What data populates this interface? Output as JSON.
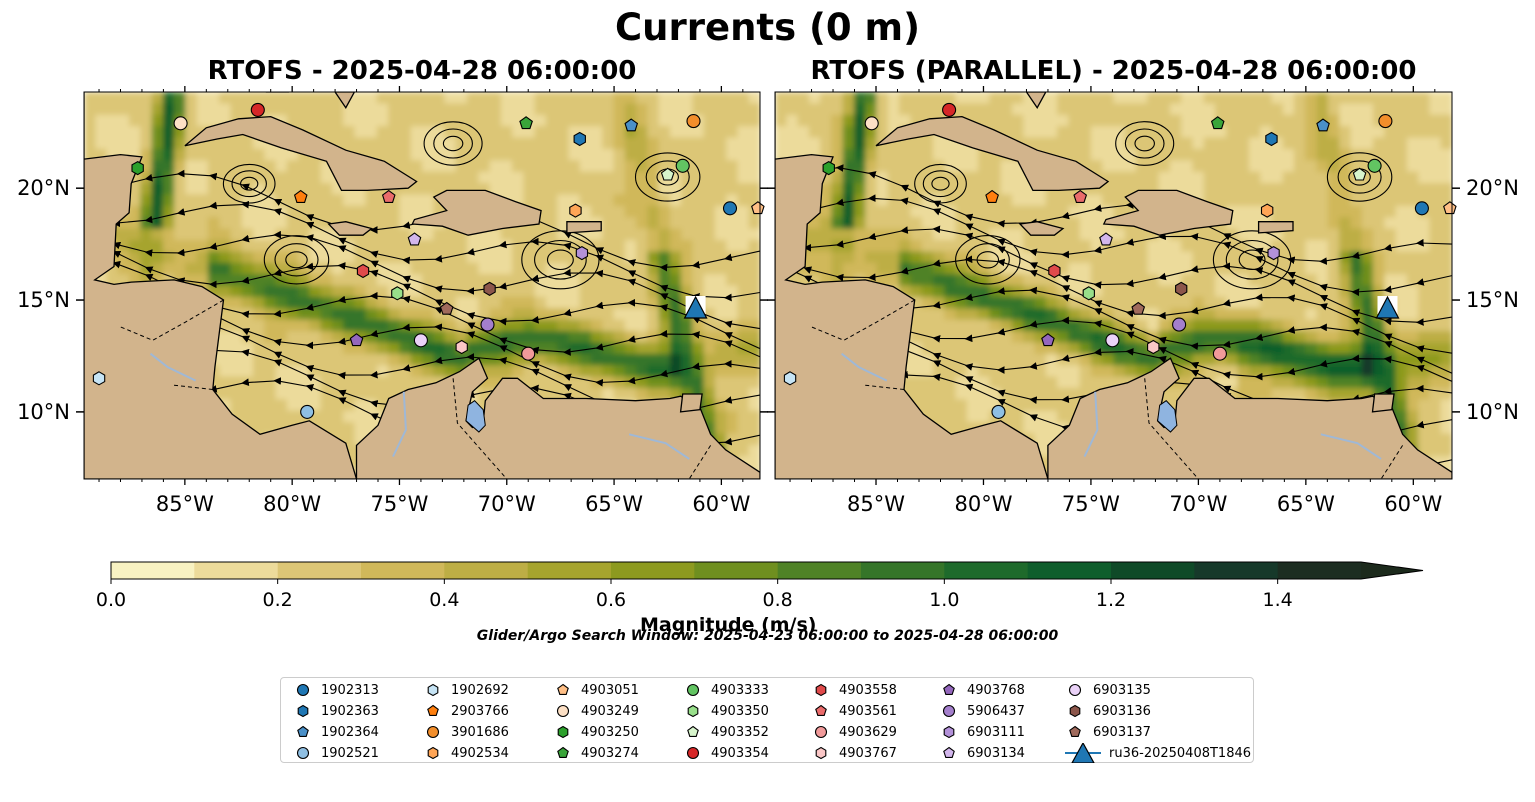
{
  "figure": {
    "suptitle": "Currents (0 m)",
    "panel_titles": [
      "RTOFS - 2025-04-28 06:00:00",
      "RTOFS (PARALLEL) - 2025-04-28 06:00:00"
    ],
    "colorbar_label": "Magnitude (m/s)",
    "search_window": "Glider/Argo Search Window: 2025-04-23 06:00:00 to 2025-04-28 06:00:00",
    "lon_ticks": [
      "85°W",
      "80°W",
      "75°W",
      "70°W",
      "65°W",
      "60°W"
    ],
    "lat_ticks": [
      "20°N",
      "15°N",
      "10°N"
    ],
    "colorbar_ticks": [
      "0.0",
      "0.2",
      "0.4",
      "0.6",
      "0.8",
      "1.0",
      "1.2",
      "1.4"
    ],
    "colors": {
      "land": "#d2b48c",
      "lake": "#8fb4e0",
      "river": "#9fb8d6"
    }
  },
  "chart_data": {
    "type": "heatmap",
    "variable": "surface current magnitude",
    "units": "m/s",
    "extent": {
      "lon": [
        -89.7,
        -58.2
      ],
      "lat": [
        7.0,
        24.3
      ]
    },
    "colorbar": {
      "min": 0.0,
      "max": 1.5,
      "step": 0.1,
      "extend": "max",
      "colors": [
        "#f8f2c2",
        "#ecdb9b",
        "#dcc676",
        "#d0b85a",
        "#bdae45",
        "#a6a42e",
        "#8d9a1f",
        "#6f8f1f",
        "#4f8226",
        "#357529",
        "#1e6a2b",
        "#0f5e2c",
        "#0f4a28",
        "#16392a",
        "#1c2d21",
        "#1c2a1c"
      ]
    },
    "floats": [
      {
        "id": "1902313",
        "marker": "circle",
        "color": "#1f77b4",
        "lon": -59.6,
        "lat": 19.1
      },
      {
        "id": "1902363",
        "marker": "hexagon",
        "color": "#1f77b4",
        "lon": -66.6,
        "lat": 22.2
      },
      {
        "id": "1902364",
        "marker": "pentagon",
        "color": "#4a90c8",
        "lon": -64.2,
        "lat": 22.8
      },
      {
        "id": "1902521",
        "marker": "circle",
        "color": "#8fbfe3",
        "lon": -79.3,
        "lat": 10.0
      },
      {
        "id": "1902692",
        "marker": "hexagon",
        "color": "#c6e4f5",
        "lon": -89.0,
        "lat": 11.5
      },
      {
        "id": "2903766",
        "marker": "pentagon",
        "color": "#ff7f0e",
        "lon": -79.6,
        "lat": 19.6
      },
      {
        "id": "3901686",
        "marker": "circle",
        "color": "#f28e2b",
        "lon": -61.3,
        "lat": 23.0
      },
      {
        "id": "4902534",
        "marker": "hexagon",
        "color": "#ffa556",
        "lon": -66.8,
        "lat": 19.0
      },
      {
        "id": "4903051",
        "marker": "pentagon",
        "color": "#ffbf86",
        "lon": -58.3,
        "lat": 19.1
      },
      {
        "id": "4903249",
        "marker": "circle",
        "color": "#fde0c5",
        "lon": -85.2,
        "lat": 22.9
      },
      {
        "id": "4903250",
        "marker": "hexagon",
        "color": "#2ca02c",
        "lon": -87.2,
        "lat": 20.9
      },
      {
        "id": "4903274",
        "marker": "pentagon",
        "color": "#3aa53a",
        "lon": -69.1,
        "lat": 22.9
      },
      {
        "id": "4903333",
        "marker": "circle",
        "color": "#62c462",
        "lon": -61.8,
        "lat": 21.0
      },
      {
        "id": "4903350",
        "marker": "hexagon",
        "color": "#98df8a",
        "lon": -75.1,
        "lat": 15.3
      },
      {
        "id": "4903352",
        "marker": "pentagon",
        "color": "#d7f5cc",
        "lon": -62.5,
        "lat": 20.6
      },
      {
        "id": "4903354",
        "marker": "circle",
        "color": "#d62728",
        "lon": -81.6,
        "lat": 23.5
      },
      {
        "id": "4903558",
        "marker": "hexagon",
        "color": "#e04a4b",
        "lon": -76.7,
        "lat": 16.3
      },
      {
        "id": "4903561",
        "marker": "pentagon",
        "color": "#ea6b6b",
        "lon": -75.5,
        "lat": 19.6
      },
      {
        "id": "4903629",
        "marker": "circle",
        "color": "#f19a9a",
        "lon": -69.0,
        "lat": 12.6
      },
      {
        "id": "4903767",
        "marker": "hexagon",
        "color": "#fbc7c7",
        "lon": -72.1,
        "lat": 12.9
      },
      {
        "id": "4903768",
        "marker": "pentagon",
        "color": "#9467bd",
        "lon": -77.0,
        "lat": 13.2
      },
      {
        "id": "5906437",
        "marker": "circle",
        "color": "#a47fcc",
        "lon": -70.9,
        "lat": 13.9
      },
      {
        "id": "6903111",
        "marker": "hexagon",
        "color": "#b391d9",
        "lon": -66.5,
        "lat": 17.1
      },
      {
        "id": "6903134",
        "marker": "pentagon",
        "color": "#d2b6ec",
        "lon": -74.3,
        "lat": 17.7
      },
      {
        "id": "6903135",
        "marker": "circle",
        "color": "#ead2f8",
        "lon": -74.0,
        "lat": 13.2
      },
      {
        "id": "6903136",
        "marker": "hexagon",
        "color": "#8c564b",
        "lon": -70.8,
        "lat": 15.5
      },
      {
        "id": "6903137",
        "marker": "pentagon",
        "color": "#a06a5c",
        "lon": -72.8,
        "lat": 14.6
      },
      {
        "id": "ru36-20250408T1846",
        "marker": "triangle",
        "color": "#1f77b4",
        "lon": -61.2,
        "lat": 14.6,
        "track": true
      }
    ]
  }
}
